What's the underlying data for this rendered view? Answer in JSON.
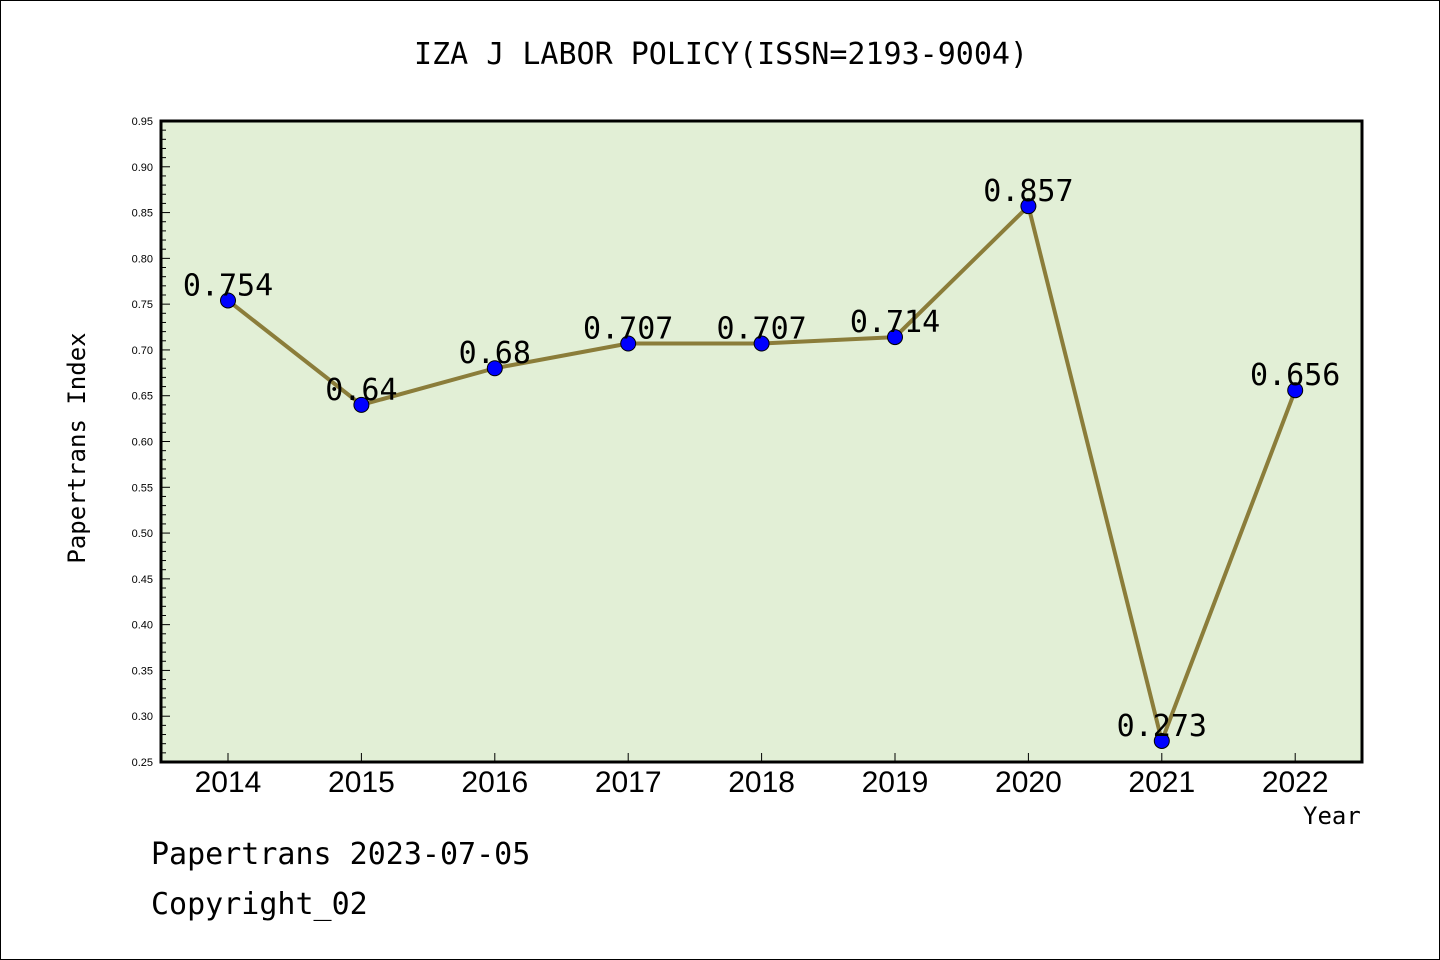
{
  "chart_data": {
    "type": "line",
    "title": "IZA J LABOR POLICY(ISSN=2193-9004)",
    "xlabel": "Year",
    "ylabel": "Papertrans Index",
    "categories": [
      "2014",
      "2015",
      "2016",
      "2017",
      "2018",
      "2019",
      "2020",
      "2021",
      "2022"
    ],
    "values": [
      0.754,
      0.64,
      0.68,
      0.707,
      0.707,
      0.714,
      0.857,
      0.273,
      0.656
    ],
    "data_labels": [
      "0.754",
      "0.64",
      "0.68",
      "0.707",
      "0.707",
      "0.714",
      "0.857",
      "0.273",
      "0.656"
    ],
    "ylim": [
      0.25,
      0.95
    ],
    "yticks": [
      "0.25",
      "0.30",
      "0.35",
      "0.40",
      "0.45",
      "0.50",
      "0.55",
      "0.60",
      "0.65",
      "0.70",
      "0.75",
      "0.80",
      "0.85",
      "0.90",
      "0.95"
    ],
    "grid": false,
    "colors": {
      "plot_background": "#e2efd6",
      "line": "#8b7d3a",
      "marker": "#0000ff"
    }
  },
  "footer": {
    "line1": "Papertrans 2023-07-05",
    "line2": "Copyright_02"
  }
}
